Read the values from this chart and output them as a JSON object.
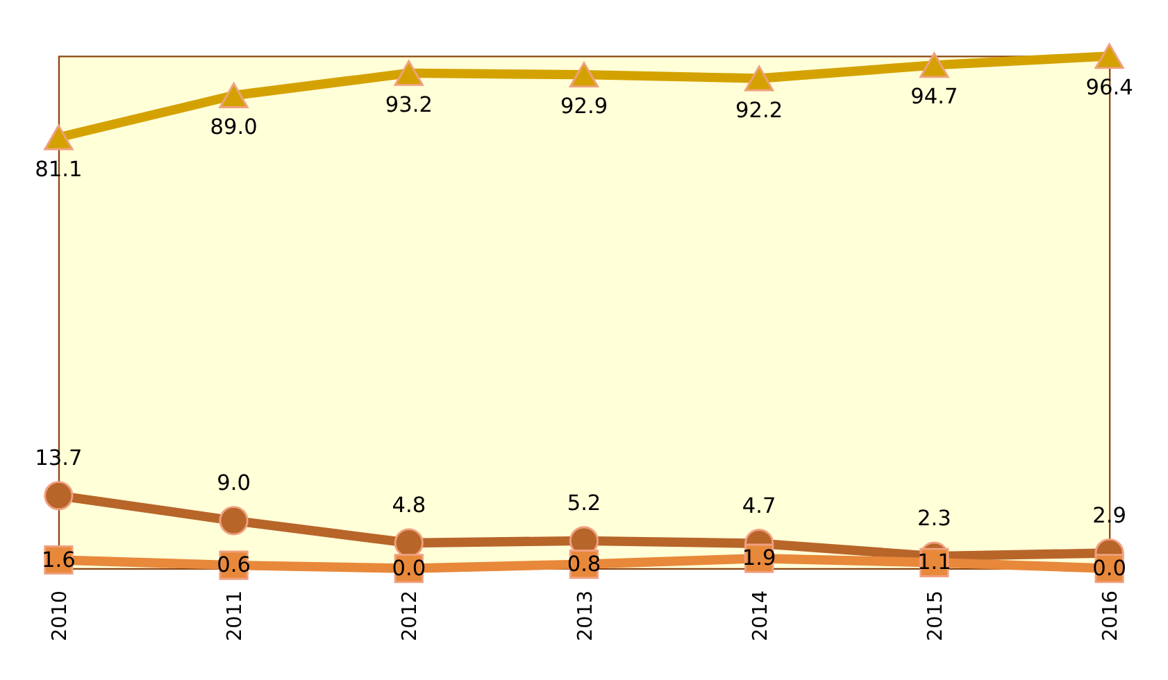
{
  "chart_data": {
    "type": "line",
    "categories": [
      "2010",
      "2011",
      "2012",
      "2013",
      "2014",
      "2015",
      "2016"
    ],
    "series": [
      {
        "color": "#d4a200",
        "marker": "triangle",
        "values": [
          81.1,
          89.0,
          93.2,
          92.9,
          92.2,
          94.7,
          96.4
        ],
        "value_labels": [
          "81.1",
          "89.0",
          "93.2",
          "92.9",
          "92.2",
          "94.7",
          "96.4"
        ]
      },
      {
        "color": "#b8652a",
        "marker": "circle",
        "values": [
          13.7,
          9.0,
          4.8,
          5.2,
          4.7,
          2.3,
          2.9
        ],
        "value_labels": [
          "13.7",
          "9.0",
          "4.8",
          "5.2",
          "4.7",
          "2.3",
          "2.9"
        ]
      },
      {
        "color": "#e8883a",
        "marker": "square",
        "values": [
          1.6,
          0.6,
          0.0,
          0.8,
          1.9,
          1.1,
          0.0
        ],
        "value_labels": [
          "1.6",
          "0.6",
          "0.0",
          "0.8",
          "1.9",
          "1.1",
          "0.0"
        ]
      }
    ]
  }
}
